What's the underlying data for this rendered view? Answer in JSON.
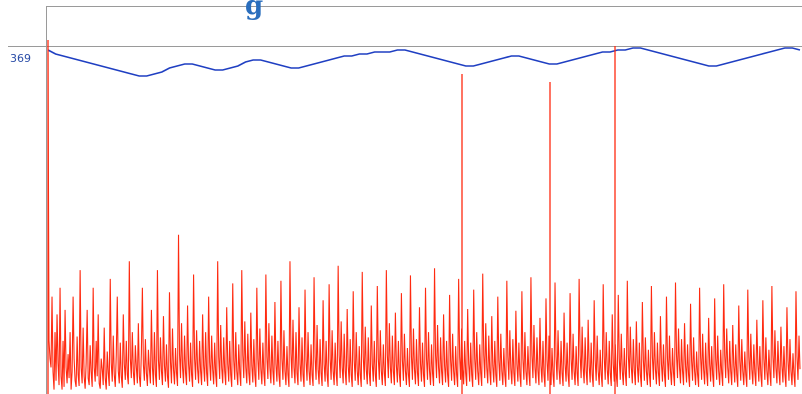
{
  "title_fragment": "g",
  "y_reference_label": "369",
  "colors": {
    "blue_series": "#1f3fc2",
    "red_series": "#ff2a10",
    "frame": "#9a9a9a",
    "title": "#2a6ebd"
  },
  "chart_data": {
    "type": "line",
    "title": "",
    "xlabel": "",
    "ylabel": "",
    "grid": false,
    "legend": "none",
    "x_range": [
      0,
      750
    ],
    "y_reference": 369,
    "series": [
      {
        "values": [
          369,
          367,
          366,
          365,
          364,
          363,
          362,
          361,
          360,
          359,
          358,
          357,
          356,
          356,
          357,
          358,
          360,
          361,
          362,
          362,
          361,
          360,
          359,
          359,
          360,
          361,
          363,
          364,
          364,
          363,
          362,
          361,
          360,
          360,
          361,
          362,
          363,
          364,
          365,
          366,
          366,
          367,
          367,
          368,
          368,
          368,
          369,
          369,
          368,
          367,
          366,
          365,
          364,
          363,
          362,
          361,
          361,
          362,
          363,
          364,
          365,
          366,
          366,
          365,
          364,
          363,
          362,
          362,
          363,
          364,
          365,
          366,
          367,
          368,
          368,
          369,
          369,
          370,
          370,
          369,
          368,
          367,
          366,
          365,
          364,
          363,
          362,
          361,
          361,
          362,
          363,
          364,
          365,
          366,
          367,
          368,
          369,
          370,
          370,
          369
        ]
      },
      {
        "note_free": true,
        "values": [
          385,
          60,
          40,
          30,
          110,
          25,
          5,
          70,
          15,
          90,
          35,
          10,
          120,
          20,
          5,
          60,
          8,
          95,
          30,
          12,
          45,
          18,
          70,
          5,
          25,
          110,
          40,
          15,
          8,
          65,
          22,
          9,
          140,
          30,
          12,
          75,
          20,
          6,
          35,
          95,
          18,
          10,
          55,
          25,
          8,
          120,
          30,
          14,
          60,
          20,
          90,
          12,
          6,
          40,
          28,
          10,
          75,
          18,
          5,
          48,
          24,
          9,
          130,
          35,
          14,
          66,
          22,
          8,
          44,
          110,
          26,
          12,
          58,
          20,
          7,
          90,
          34,
          16,
          60,
          22,
          11,
          150,
          40,
          18,
          70,
          25,
          10,
          55,
          30,
          12,
          80,
          20,
          8,
          46,
          120,
          33,
          15,
          62,
          24,
          9,
          50,
          28,
          12,
          95,
          30,
          10,
          70,
          22,
          8,
          140,
          38,
          16,
          64,
          26,
          10,
          88,
          32,
          14,
          56,
          20,
          7,
          115,
          36,
          12,
          74,
          28,
          11,
          52,
          24,
          9,
          180,
          45,
          18,
          80,
          30,
          12,
          66,
          24,
          10,
          100,
          34,
          14,
          58,
          22,
          8,
          135,
          40,
          16,
          72,
          28,
          12,
          60,
          26,
          10,
          90,
          32,
          14,
          70,
          24,
          9,
          110,
          36,
          15,
          66,
          28,
          11,
          58,
          22,
          8,
          150,
          42,
          17,
          78,
          30,
          12,
          64,
          26,
          10,
          98,
          34,
          14,
          60,
          22,
          8,
          125,
          38,
          16,
          70,
          26,
          10,
          56,
          24,
          9,
          140,
          44,
          18,
          82,
          30,
          12,
          68,
          24,
          10,
          92,
          32,
          13,
          62,
          22,
          8,
          120,
          40,
          16,
          74,
          28,
          11,
          58,
          24,
          9,
          135,
          42,
          17,
          80,
          30,
          12,
          66,
          26,
          10,
          104,
          34,
          14,
          60,
          22,
          8,
          128,
          40,
          16,
          72,
          26,
          10,
          54,
          22,
          8,
          150,
          46,
          18,
          84,
          30,
          12,
          70,
          24,
          10,
          98,
          34,
          14,
          64,
          22,
          8,
          118,
          38,
          15,
          70,
          26,
          10,
          56,
          22,
          9,
          132,
          42,
          16,
          78,
          28,
          11,
          62,
          24,
          9,
          106,
          34,
          14,
          60,
          22,
          8,
          124,
          40,
          16,
          72,
          26,
          10,
          58,
          24,
          9,
          145,
          44,
          18,
          82,
          30,
          12,
          68,
          26,
          10,
          96,
          32,
          13,
          62,
          22,
          8,
          116,
          38,
          15,
          70,
          26,
          10,
          54,
          22,
          8,
          138,
          42,
          16,
          76,
          28,
          11,
          64,
          24,
          9,
          100,
          34,
          14,
          60,
          22,
          8,
          122,
          40,
          16,
          72,
          26,
          10,
          56,
          24,
          9,
          140,
          44,
          18,
          80,
          30,
          12,
          66,
          26,
          10,
          92,
          32,
          13,
          60,
          22,
          8,
          114,
          38,
          15,
          68,
          26,
          10,
          52,
          22,
          8,
          134,
          42,
          16,
          74,
          28,
          11,
          62,
          24,
          9,
          98,
          34,
          14,
          58,
          22,
          8,
          120,
          40,
          16,
          70,
          26,
          10,
          56,
          24,
          9,
          142,
          44,
          18,
          78,
          30,
          12,
          64,
          26,
          10,
          90,
          32,
          13,
          60,
          22,
          8,
          112,
          38,
          15,
          68,
          26,
          10,
          54,
          22,
          8,
          130,
          42,
          16,
          74,
          28,
          11,
          60,
          24,
          9,
          96,
          34,
          14,
          58,
          22,
          8,
          118,
          40,
          16,
          70,
          26,
          10,
          56,
          24,
          9,
          136,
          44,
          18,
          80,
          30,
          12,
          66,
          26,
          10,
          88,
          32,
          13,
          60,
          22,
          8,
          110,
          38,
          15,
          68,
          26,
          10,
          52,
          22,
          8,
          128,
          42,
          16,
          72,
          28,
          11,
          62,
          24,
          9,
          94,
          34,
          14,
          58,
          22,
          8,
          116,
          40,
          16,
          70,
          26,
          10,
          54,
          24,
          9,
          132,
          44,
          18,
          78,
          30,
          12,
          64,
          26,
          10,
          86,
          32,
          13,
          60,
          22,
          8,
          108,
          38,
          15,
          66,
          26,
          10,
          52,
          22,
          8,
          126,
          42,
          16,
          72,
          28,
          11,
          60,
          24,
          9,
          92,
          34,
          14,
          58,
          22,
          8,
          114,
          40,
          16,
          68,
          26,
          10,
          54,
          24,
          9,
          130,
          44,
          18,
          76,
          30,
          12,
          64,
          26,
          10,
          84,
          32,
          13,
          58,
          22,
          8,
          106,
          38,
          15,
          66,
          26,
          10,
          50,
          22,
          8,
          124,
          42,
          16,
          70,
          28,
          11,
          60,
          24,
          9,
          90,
          34,
          14,
          56,
          22,
          8,
          112,
          40,
          16,
          68,
          26,
          10,
          52,
          24,
          9,
          128,
          44,
          18,
          76,
          30,
          12,
          62,
          26,
          10,
          82,
          32,
          13,
          58,
          22,
          8,
          104,
          38,
          15,
          64,
          26,
          10,
          50,
          22,
          8,
          122,
          42,
          16,
          70,
          28,
          11,
          58,
          24,
          9,
          88,
          34,
          14,
          56,
          22,
          8,
          110,
          40,
          16,
          66,
          26,
          10,
          52,
          24,
          9,
          126,
          44,
          18,
          74,
          30,
          12,
          62,
          26,
          10,
          80,
          32,
          13,
          56,
          22,
          8,
          102,
          38,
          15,
          64,
          26,
          10,
          48,
          22,
          8,
          120,
          42,
          16,
          68,
          28,
          11,
          58,
          24,
          9,
          86,
          34,
          14,
          54,
          22,
          8,
          108,
          40,
          16,
          66,
          26,
          10,
          50,
          24,
          9,
          124,
          44,
          18,
          74,
          30,
          12,
          60,
          26,
          10,
          78,
          32,
          13,
          56,
          22,
          8,
          100,
          38,
          15,
          62,
          26,
          10,
          48,
          22,
          8,
          118,
          42,
          16,
          68,
          28,
          11,
          56,
          24,
          9,
          84,
          34,
          14,
          54,
          22,
          8,
          106,
          40,
          16,
          64,
          26,
          10,
          50,
          24,
          9,
          122,
          44,
          18,
          72,
          30,
          12,
          60,
          26,
          10,
          76,
          32,
          13,
          54,
          22,
          8,
          98,
          38,
          15,
          62,
          26,
          10,
          46,
          22,
          8,
          116,
          42,
          16,
          66,
          28
        ]
      }
    ]
  }
}
